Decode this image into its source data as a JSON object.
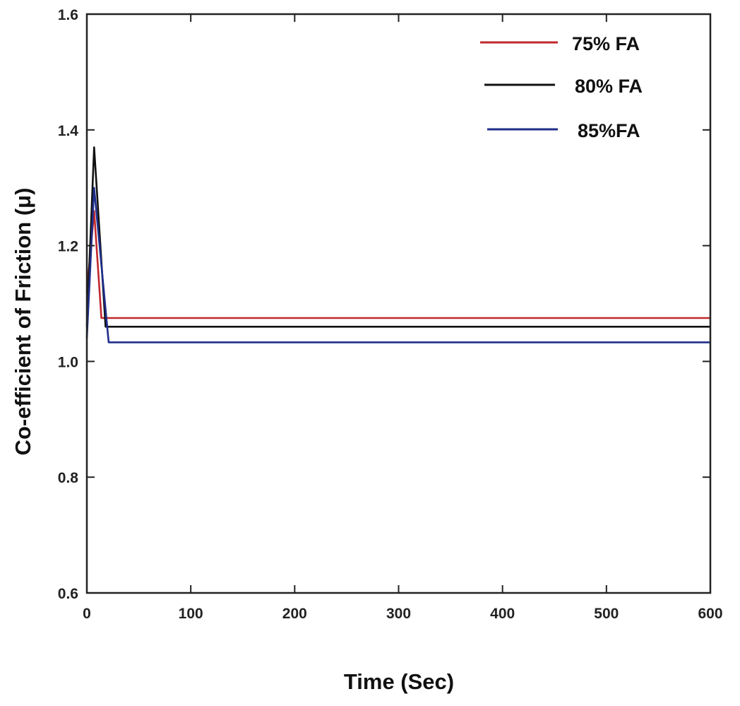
{
  "chart_data": {
    "type": "line",
    "xlabel": "Time (Sec)",
    "ylabel": "Co-efficient of Friction (μ)",
    "xlim": [
      0,
      600
    ],
    "ylim": [
      0.6,
      1.6
    ],
    "xticks": [
      0,
      100,
      200,
      300,
      400,
      500,
      600
    ],
    "yticks": [
      0.6,
      0.8,
      1.0,
      1.2,
      1.4,
      1.6
    ],
    "xtick_labels": [
      "0",
      "100",
      "200",
      "300",
      "400",
      "500",
      "600"
    ],
    "ytick_labels": [
      "0.6",
      "0.8",
      "1.0",
      "1.2",
      "1.4",
      "1.6"
    ],
    "grid": false,
    "legend_position": "top-right",
    "series": [
      {
        "name": "75% FA",
        "color": "#c0282d",
        "x": [
          0,
          7,
          14,
          600
        ],
        "y": [
          1.12,
          1.26,
          1.075,
          1.075
        ]
      },
      {
        "name": "80% FA",
        "color": "#111111",
        "x": [
          0,
          7,
          18,
          600
        ],
        "y": [
          1.06,
          1.37,
          1.06,
          1.06
        ]
      },
      {
        "name": "85%FA",
        "color": "#1f2e8a",
        "x": [
          0,
          7,
          21,
          600
        ],
        "y": [
          1.04,
          1.3,
          1.033,
          1.033
        ]
      }
    ]
  }
}
